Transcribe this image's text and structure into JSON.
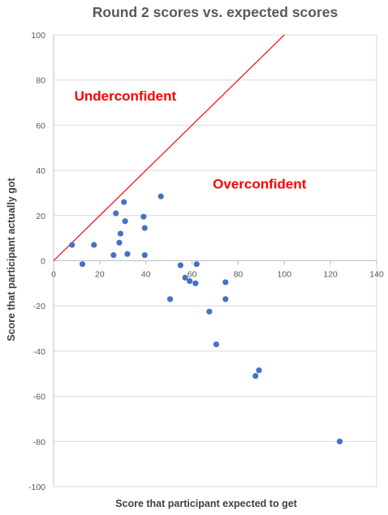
{
  "chart_data": {
    "type": "scatter",
    "title": "Round 2 scores vs. expected scores",
    "xlabel": "Score that participant expected to get",
    "ylabel": "Score that participant actually got",
    "xlim": [
      0,
      140
    ],
    "ylim": [
      -100,
      100
    ],
    "xticks": [
      0,
      20,
      40,
      60,
      80,
      100,
      120,
      140
    ],
    "yticks": [
      -100,
      -80,
      -60,
      -40,
      -20,
      0,
      20,
      40,
      60,
      80,
      100
    ],
    "grid": "horizontal",
    "colors": {
      "points": "#4472c4",
      "reference_line": "#ff0000",
      "annotations": "#ff0000"
    },
    "reference_line": {
      "from": [
        0,
        0
      ],
      "to": [
        100,
        100
      ]
    },
    "annotations": [
      {
        "text": "Underconfident",
        "x": 9,
        "y": 71
      },
      {
        "text": "Overconfident",
        "x": 69,
        "y": 32
      }
    ],
    "series": [
      {
        "points": [
          [
            8,
            7
          ],
          [
            12.5,
            -1.5
          ],
          [
            17.5,
            7
          ],
          [
            26,
            2.5
          ],
          [
            27,
            21
          ],
          [
            28.5,
            8
          ],
          [
            29,
            12
          ],
          [
            30.5,
            26
          ],
          [
            31,
            17.5
          ],
          [
            32,
            3
          ],
          [
            39,
            19.5
          ],
          [
            39.5,
            14.5
          ],
          [
            39.5,
            2.5
          ],
          [
            46.5,
            28.5
          ],
          [
            50.5,
            -17
          ],
          [
            55,
            -2
          ],
          [
            57,
            -7.5
          ],
          [
            59,
            -9
          ],
          [
            61.5,
            -10
          ],
          [
            62,
            -1.5
          ],
          [
            67.5,
            -22.5
          ],
          [
            70.5,
            -37
          ],
          [
            74.5,
            -9.5
          ],
          [
            74.5,
            -17
          ],
          [
            87.5,
            -51
          ],
          [
            89,
            -48.5
          ],
          [
            124,
            -80
          ]
        ]
      }
    ]
  }
}
